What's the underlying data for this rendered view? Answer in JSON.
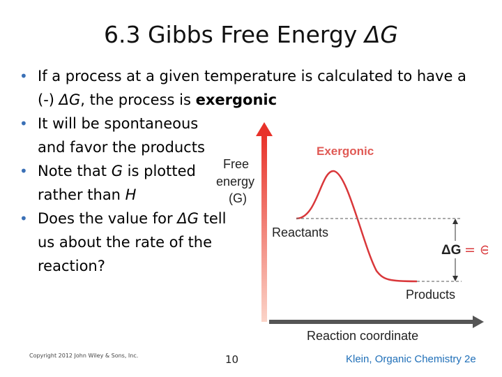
{
  "slide": {
    "title": "6.3 Gibbs Free Energy",
    "title_symbol": "ΔG",
    "bullets": [
      {
        "a": "If a process at a given temperature is calculated to have a (-) ",
        "b": "ΔG",
        "c": ", the process is ",
        "d": "exergonic"
      },
      {
        "a": "It will be spontaneous and favor the products"
      },
      {
        "a": "Note that ",
        "b": "G",
        "c": " is plotted rather than ",
        "d": "H"
      },
      {
        "a": "Does the value for ",
        "b": "ΔG",
        "c": " tell us about the rate of the reaction?"
      }
    ],
    "footer": {
      "copyright": "Copyright 2012 John Wiley & Sons, Inc.",
      "page": "10",
      "source": "Klein, Organic Chemistry 2e"
    }
  },
  "diagram": {
    "y_label_line1": "Free",
    "y_label_line2": "energy",
    "y_label_line3": "(G)",
    "x_label": "Reaction coordinate",
    "curve_label": "Exergonic",
    "reactants_label": "Reactants",
    "products_label": "Products",
    "delta_label": "ΔG",
    "delta_sign": "= ⊖",
    "colors": {
      "axis_y": "#e8322a",
      "axis_x": "#555555",
      "curve": "#d9373a"
    }
  }
}
